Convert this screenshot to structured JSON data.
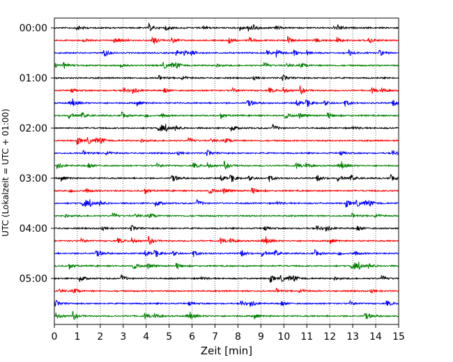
{
  "chart_data": {
    "type": "line",
    "title": "",
    "xlabel": "Zeit  [min]",
    "ylabel": "UTC (Lokalzeit = UTC + 01:00)",
    "xlim": [
      0,
      15
    ],
    "x_ticks": [
      0,
      1,
      2,
      3,
      4,
      5,
      6,
      7,
      8,
      9,
      10,
      11,
      12,
      13,
      14,
      15
    ],
    "y_tick_labels": [
      "00:00",
      "01:00",
      "02:00",
      "03:00",
      "04:00",
      "05:00"
    ],
    "grid": "vertical dotted",
    "trace_interval_minutes": 15,
    "trace_colors": [
      "#000000",
      "#ff0000",
      "#0000ff",
      "#008000"
    ],
    "series": [
      {
        "start": "00:00",
        "color": "#000000"
      },
      {
        "start": "00:15",
        "color": "#ff0000"
      },
      {
        "start": "00:30",
        "color": "#0000ff"
      },
      {
        "start": "00:45",
        "color": "#008000"
      },
      {
        "start": "01:00",
        "color": "#000000"
      },
      {
        "start": "01:15",
        "color": "#ff0000"
      },
      {
        "start": "01:30",
        "color": "#0000ff"
      },
      {
        "start": "01:45",
        "color": "#008000"
      },
      {
        "start": "02:00",
        "color": "#000000"
      },
      {
        "start": "02:15",
        "color": "#ff0000"
      },
      {
        "start": "02:30",
        "color": "#0000ff"
      },
      {
        "start": "02:45",
        "color": "#008000"
      },
      {
        "start": "03:00",
        "color": "#000000"
      },
      {
        "start": "03:15",
        "color": "#ff0000"
      },
      {
        "start": "03:30",
        "color": "#0000ff"
      },
      {
        "start": "03:45",
        "color": "#008000"
      },
      {
        "start": "04:00",
        "color": "#000000"
      },
      {
        "start": "04:15",
        "color": "#ff0000"
      },
      {
        "start": "04:30",
        "color": "#0000ff"
      },
      {
        "start": "04:45",
        "color": "#008000"
      },
      {
        "start": "05:00",
        "color": "#000000"
      },
      {
        "start": "05:15",
        "color": "#ff0000"
      },
      {
        "start": "05:30",
        "color": "#0000ff"
      },
      {
        "start": "05:45",
        "color": "#008000"
      }
    ]
  }
}
